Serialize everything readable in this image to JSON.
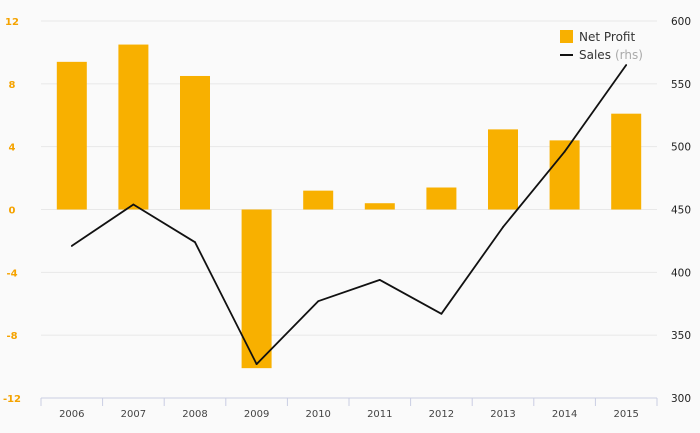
{
  "chart_data": {
    "type": "bar",
    "categories": [
      "2006",
      "2007",
      "2008",
      "2009",
      "2010",
      "2011",
      "2012",
      "2013",
      "2014",
      "2015"
    ],
    "series": [
      {
        "name": "Net Profit",
        "type": "bar",
        "axis": "left",
        "color": "#f8b000",
        "values": [
          9.4,
          10.5,
          8.5,
          -10.1,
          1.2,
          0.4,
          1.4,
          5.1,
          4.4,
          6.1
        ]
      },
      {
        "name": "Sales",
        "type": "line",
        "axis": "right",
        "color": "#111111",
        "values": [
          421,
          454,
          424,
          327,
          377,
          394,
          367,
          436,
          496,
          565
        ]
      }
    ],
    "left_axis": {
      "ylim": [
        -12,
        12
      ],
      "ticks": [
        "12",
        "8",
        "4",
        "0",
        "-4",
        "-8",
        "-12"
      ]
    },
    "right_axis": {
      "ylim": [
        300,
        600
      ],
      "ticks": [
        "600",
        "550",
        "500",
        "450",
        "400",
        "350",
        "300"
      ]
    },
    "grid": true,
    "legend": {
      "position": "top-right",
      "items": [
        {
          "label": "Net Profit",
          "suffix": ""
        },
        {
          "label": "Sales",
          "suffix": "(rhs)"
        }
      ]
    }
  }
}
